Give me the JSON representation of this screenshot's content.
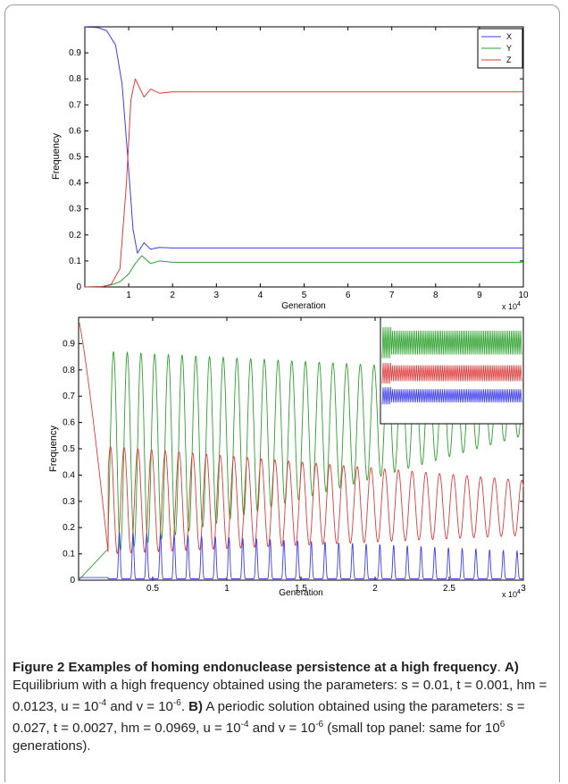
{
  "chart_data": [
    {
      "type": "line",
      "title": "",
      "xlabel": "Generation",
      "ylabel": "Frequency",
      "x_multiplier": "x 10",
      "x_multiplier_exp": "4",
      "xlim": [
        0,
        10
      ],
      "ylim": [
        0,
        1
      ],
      "xticks": [
        "1",
        "2",
        "3",
        "4",
        "5",
        "6",
        "7",
        "8",
        "9",
        "10"
      ],
      "yticks": [
        "0",
        "0.1",
        "0.2",
        "0.3",
        "0.4",
        "0.5",
        "0.6",
        "0.7",
        "0.8",
        "0.9"
      ],
      "legend": {
        "position": "top-right",
        "entries": [
          "X",
          "Y",
          "Z"
        ]
      },
      "colors": {
        "X": "#3d3df0",
        "Y": "#2ca02c",
        "Z": "#e03a3a"
      },
      "series": [
        {
          "name": "X",
          "x": [
            0,
            0.3,
            0.5,
            0.7,
            0.85,
            1.0,
            1.1,
            1.2,
            1.35,
            1.5,
            1.7,
            2.0,
            3,
            10
          ],
          "values": [
            0.999,
            0.997,
            0.985,
            0.93,
            0.78,
            0.45,
            0.22,
            0.13,
            0.17,
            0.145,
            0.152,
            0.15,
            0.15,
            0.15
          ]
        },
        {
          "name": "Y",
          "x": [
            0,
            0.4,
            0.6,
            0.8,
            1.0,
            1.15,
            1.3,
            1.5,
            1.7,
            2.0,
            3,
            10
          ],
          "values": [
            0,
            0.002,
            0.008,
            0.02,
            0.05,
            0.09,
            0.12,
            0.09,
            0.1,
            0.095,
            0.095,
            0.095
          ]
        },
        {
          "name": "Z",
          "x": [
            0,
            0.4,
            0.6,
            0.8,
            0.95,
            1.05,
            1.15,
            1.35,
            1.5,
            1.7,
            2.0,
            3,
            10
          ],
          "values": [
            0,
            0.001,
            0.01,
            0.07,
            0.4,
            0.72,
            0.8,
            0.73,
            0.76,
            0.745,
            0.75,
            0.75,
            0.75
          ]
        }
      ]
    },
    {
      "type": "line",
      "title": "",
      "xlabel": "Generation",
      "ylabel": "Frequency",
      "x_multiplier": "x 10",
      "x_multiplier_exp": "4",
      "xlim": [
        0,
        3
      ],
      "ylim": [
        0,
        1
      ],
      "xticks": [
        "0.5",
        "1",
        "1.5",
        "2",
        "2.5",
        "3"
      ],
      "yticks": [
        "0",
        "0.1",
        "0.2",
        "0.3",
        "0.4",
        "0.5",
        "0.6",
        "0.7",
        "0.8",
        "0.9"
      ],
      "colors": {
        "X": "#3d3df0",
        "Y": "#2ca02c",
        "Z": "#e03a3a"
      },
      "oscillation": {
        "period": 0.0925,
        "x_start": 0.005,
        "X_peak_start": 0.18,
        "X_peak_end": 0.105,
        "Y_peak_start": 0.87,
        "Y_peak_end": 0.79,
        "Y_trough_start": 0.1,
        "Y_trough_end": 0.55,
        "Z_peak_start": 0.51,
        "Z_peak_end": 0.38,
        "Z_trough_start": 0.1,
        "Z_trough_end": 0.17
      },
      "inset": {
        "position": "top-right",
        "Y_band": [
          0.86,
          0.95
        ],
        "Z_band": [
          0.76,
          0.82
        ],
        "X_band": [
          0.68,
          0.73
        ]
      }
    }
  ],
  "caption": {
    "figure_label": "Figure 2 Examples of homing endonuclease persistence at a high frequency",
    "after_label": ". ",
    "part_a_label": "A)",
    "part_a_text": " Equilibrium with a high frequency obtained using the parameters: s = 0.01, t = 0.001, hm = 0.0123, u = 10",
    "part_a_exp1": "-4",
    "part_a_and": " and v = 10",
    "part_a_exp2": "-6",
    "part_a_end": ". ",
    "part_b_label": "B)",
    "part_b_text": " A periodic solution obtained using the parameters: s = 0.027, t = 0.0027, hm = 0.0969, u = 10",
    "part_b_exp1": "-4",
    "part_b_and": " and v = 10",
    "part_b_exp2": "-6",
    "part_b_paren": " (small top panel: same for 10",
    "part_b_exp3": "6",
    "part_b_end": " generations)."
  }
}
